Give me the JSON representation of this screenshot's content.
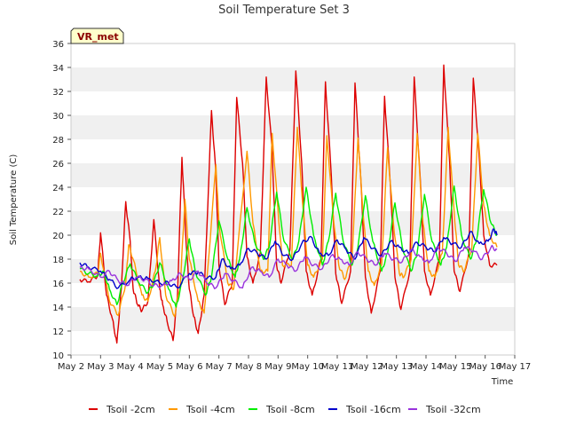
{
  "chart_data": {
    "type": "line",
    "title": "Soil Temperature Set 3",
    "xlabel": "Time",
    "ylabel": "Soil Temperature (C)",
    "badge": "VR_met",
    "xlim": [
      2,
      17
    ],
    "ylim": [
      10,
      36
    ],
    "yticks": [
      10,
      12,
      14,
      16,
      18,
      20,
      22,
      24,
      26,
      28,
      30,
      32,
      34,
      36
    ],
    "xticks": [
      {
        "x": 2,
        "label": "May 2"
      },
      {
        "x": 3,
        "label": "May 3"
      },
      {
        "x": 4,
        "label": "May 4"
      },
      {
        "x": 5,
        "label": "May 5"
      },
      {
        "x": 6,
        "label": "May 6"
      },
      {
        "x": 7,
        "label": "May 7"
      },
      {
        "x": 8,
        "label": "May 8"
      },
      {
        "x": 9,
        "label": "May 9"
      },
      {
        "x": 10,
        "label": "May 10"
      },
      {
        "x": 11,
        "label": "May 11"
      },
      {
        "x": 12,
        "label": "May 12"
      },
      {
        "x": 13,
        "label": "May 13"
      },
      {
        "x": 14,
        "label": "May 14"
      },
      {
        "x": 15,
        "label": "May 15"
      },
      {
        "x": 16,
        "label": "May 16"
      },
      {
        "x": 17,
        "label": "May 17"
      }
    ],
    "grid": "alternating horizontal bands",
    "legend_position": "bottom",
    "series": [
      {
        "name": "Tsoil -2cm",
        "color": "#dd0000",
        "x": [
          2.3,
          2.6,
          2.9,
          3.0,
          3.2,
          3.4,
          3.55,
          3.7,
          3.85,
          4.0,
          4.1,
          4.25,
          4.4,
          4.6,
          4.8,
          5.0,
          5.1,
          5.25,
          5.45,
          5.6,
          5.75,
          5.9,
          6.0,
          6.15,
          6.3,
          6.5,
          6.75,
          6.9,
          7.0,
          7.2,
          7.45,
          7.6,
          7.8,
          7.95,
          8.15,
          8.4,
          8.6,
          8.8,
          8.95,
          9.1,
          9.4,
          9.6,
          9.8,
          9.95,
          10.15,
          10.45,
          10.6,
          10.8,
          10.95,
          11.15,
          11.45,
          11.6,
          11.8,
          11.95,
          12.15,
          12.45,
          12.6,
          12.8,
          12.95,
          13.15,
          13.45,
          13.6,
          13.8,
          13.95,
          14.15,
          14.45,
          14.6,
          14.8,
          14.95,
          15.15,
          15.45,
          15.6,
          15.8,
          15.95,
          16.15,
          16.4
        ],
        "y": [
          16.3,
          16.1,
          16.6,
          20.2,
          15.0,
          13.0,
          11.0,
          15.5,
          22.8,
          19.5,
          15.5,
          14.2,
          13.7,
          14.5,
          21.3,
          15.5,
          14.2,
          12.8,
          11.2,
          15.0,
          26.5,
          19.0,
          15.5,
          13.2,
          11.8,
          15.0,
          30.4,
          25.0,
          17.5,
          14.2,
          16.0,
          31.5,
          26.0,
          18.2,
          16.0,
          18.5,
          33.2,
          27.0,
          17.5,
          16.0,
          18.8,
          33.7,
          26.0,
          17.0,
          15.0,
          18.0,
          32.8,
          25.0,
          16.8,
          14.3,
          17.0,
          32.7,
          24.5,
          16.5,
          13.5,
          17.0,
          31.6,
          24.0,
          16.5,
          13.8,
          17.0,
          33.2,
          25.0,
          17.0,
          15.0,
          18.0,
          34.2,
          26.0,
          17.0,
          15.3,
          18.5,
          33.1,
          26.5,
          20.0,
          17.5,
          17.5
        ]
      },
      {
        "name": "Tsoil -4cm",
        "color": "#ff9900",
        "x": [
          2.3,
          2.6,
          2.9,
          3.0,
          3.3,
          3.6,
          3.85,
          3.95,
          4.1,
          4.4,
          4.6,
          4.85,
          5.0,
          5.2,
          5.5,
          5.7,
          5.85,
          6.0,
          6.3,
          6.5,
          6.6,
          6.9,
          7.0,
          7.3,
          7.5,
          7.6,
          7.95,
          8.15,
          8.4,
          8.65,
          8.8,
          9.0,
          9.15,
          9.45,
          9.65,
          9.85,
          10.0,
          10.2,
          10.5,
          10.65,
          10.85,
          11.05,
          11.25,
          11.5,
          11.7,
          11.9,
          12.05,
          12.25,
          12.5,
          12.7,
          12.9,
          13.1,
          13.25,
          13.5,
          13.7,
          13.9,
          14.1,
          14.3,
          14.55,
          14.75,
          14.95,
          15.1,
          15.3,
          15.55,
          15.75,
          15.95,
          16.15,
          16.4
        ],
        "y": [
          17.0,
          16.5,
          16.8,
          18.5,
          14.5,
          13.3,
          16.0,
          19.2,
          18.0,
          15.0,
          14.5,
          17.0,
          19.8,
          15.0,
          13.2,
          16.0,
          23.0,
          18.0,
          14.5,
          13.5,
          16.5,
          25.9,
          21.0,
          16.0,
          15.5,
          18.0,
          27.0,
          21.0,
          17.0,
          17.0,
          28.5,
          22.0,
          17.5,
          17.5,
          29.0,
          22.0,
          17.5,
          16.5,
          18.0,
          28.3,
          22.0,
          17.5,
          16.3,
          18.0,
          28.1,
          21.0,
          17.0,
          15.8,
          17.5,
          27.3,
          21.0,
          16.8,
          16.5,
          18.0,
          28.5,
          21.0,
          17.0,
          16.5,
          18.5,
          29.0,
          22.0,
          17.5,
          17.0,
          19.0,
          28.5,
          22.5,
          20.0,
          19.0
        ]
      },
      {
        "name": "Tsoil -8cm",
        "color": "#00ee00",
        "x": [
          2.3,
          2.6,
          2.9,
          3.1,
          3.3,
          3.55,
          3.75,
          4.0,
          4.3,
          4.6,
          4.8,
          5.0,
          5.3,
          5.55,
          5.75,
          6.0,
          6.2,
          6.55,
          6.75,
          7.0,
          7.3,
          7.55,
          7.7,
          7.95,
          8.2,
          8.5,
          8.7,
          8.95,
          9.2,
          9.5,
          9.7,
          9.95,
          10.2,
          10.5,
          10.7,
          10.95,
          11.2,
          11.5,
          11.7,
          11.95,
          12.2,
          12.5,
          12.7,
          12.95,
          13.2,
          13.5,
          13.7,
          13.95,
          14.2,
          14.5,
          14.7,
          14.95,
          15.2,
          15.5,
          15.7,
          15.95,
          16.2,
          16.4
        ],
        "y": [
          17.2,
          16.8,
          16.6,
          17.0,
          15.5,
          14.2,
          16.0,
          17.6,
          16.0,
          15.2,
          16.0,
          17.7,
          15.5,
          14.0,
          16.0,
          19.7,
          17.0,
          15.0,
          16.5,
          21.2,
          18.0,
          16.5,
          18.0,
          22.3,
          19.5,
          18.0,
          19.0,
          23.6,
          19.5,
          18.0,
          19.5,
          24.0,
          20.0,
          17.5,
          19.5,
          23.5,
          19.5,
          17.5,
          19.0,
          23.3,
          19.5,
          17.0,
          18.5,
          22.7,
          19.0,
          17.0,
          18.5,
          23.4,
          19.5,
          17.5,
          19.0,
          24.1,
          20.0,
          18.0,
          19.5,
          23.8,
          21.0,
          20.0
        ]
      },
      {
        "name": "Tsoil -16cm",
        "color": "#0000cc",
        "x": [
          2.3,
          2.6,
          3.0,
          3.3,
          3.6,
          4.0,
          4.3,
          4.6,
          5.0,
          5.3,
          5.6,
          6.0,
          6.3,
          6.6,
          6.9,
          7.1,
          7.4,
          7.7,
          8.0,
          8.3,
          8.6,
          8.9,
          9.2,
          9.5,
          9.8,
          10.1,
          10.4,
          10.7,
          11.0,
          11.3,
          11.6,
          11.9,
          12.2,
          12.5,
          12.8,
          13.1,
          13.4,
          13.7,
          14.0,
          14.3,
          14.6,
          14.9,
          15.2,
          15.5,
          15.8,
          16.1,
          16.3,
          16.4
        ],
        "y": [
          17.7,
          17.3,
          17.0,
          16.3,
          15.6,
          16.3,
          16.5,
          16.4,
          16.0,
          16.0,
          15.6,
          16.8,
          16.9,
          16.4,
          16.5,
          18.0,
          17.2,
          17.5,
          18.9,
          18.5,
          18.0,
          19.5,
          18.3,
          18.0,
          19.3,
          19.9,
          18.5,
          18.3,
          19.6,
          18.8,
          18.0,
          19.8,
          18.9,
          18.3,
          19.5,
          19.0,
          18.5,
          19.4,
          19.0,
          18.6,
          19.8,
          19.3,
          19.0,
          20.3,
          19.3,
          19.5,
          20.5,
          20.0
        ]
      },
      {
        "name": "Tsoil -32cm",
        "color": "#9933dd",
        "x": [
          2.3,
          2.6,
          3.0,
          3.3,
          3.6,
          3.9,
          4.2,
          4.5,
          4.8,
          5.1,
          5.4,
          5.7,
          6.0,
          6.3,
          6.6,
          6.9,
          7.2,
          7.5,
          7.8,
          8.1,
          8.4,
          8.7,
          9.0,
          9.3,
          9.6,
          9.9,
          10.2,
          10.5,
          10.8,
          11.1,
          11.4,
          11.7,
          12.0,
          12.3,
          12.6,
          12.9,
          13.2,
          13.5,
          13.8,
          14.1,
          14.4,
          14.7,
          15.0,
          15.3,
          15.6,
          15.9,
          16.2,
          16.4
        ],
        "y": [
          17.3,
          17.2,
          16.5,
          17.0,
          16.2,
          15.8,
          16.5,
          16.3,
          15.8,
          15.8,
          16.2,
          16.8,
          16.3,
          17.0,
          16.0,
          15.6,
          16.8,
          16.2,
          15.6,
          17.3,
          17.0,
          16.5,
          18.0,
          17.5,
          17.0,
          18.2,
          17.5,
          17.2,
          18.3,
          18.0,
          17.5,
          18.6,
          18.0,
          17.5,
          18.5,
          18.0,
          17.8,
          18.8,
          18.2,
          17.7,
          19.0,
          18.5,
          17.8,
          19.0,
          18.7,
          18.0,
          19.0,
          18.8
        ]
      }
    ]
  }
}
